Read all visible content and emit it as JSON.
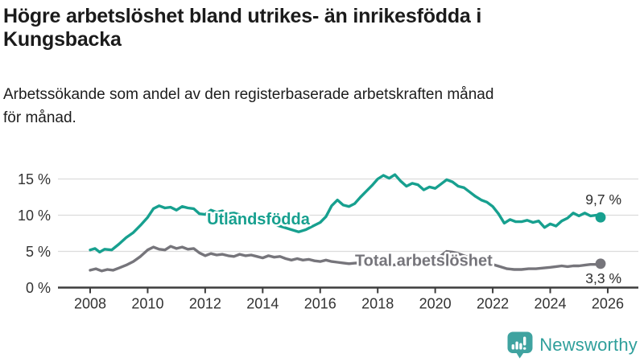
{
  "header": {
    "title": "Högre arbetslöshet bland utrikes- än inrikesfödda i\nKungsbacka",
    "subtitle": "Arbetssökande som andel av den registerbaserade arbetskraften månad\nför månad."
  },
  "chart_data": {
    "type": "line",
    "title": "Högre arbetslöshet bland utrikes- än inrikesfödda i Kungsbacka",
    "subtitle": "Arbetssökande som andel av den registerbaserade arbetskraften månad för månad.",
    "unit": "%",
    "grid": true,
    "legend_position": "inline-labels",
    "x_axis": {
      "ticks": [
        2008,
        2010,
        2012,
        2014,
        2016,
        2018,
        2020,
        2022,
        2024,
        2026
      ],
      "range": [
        2007.5,
        2027.1
      ]
    },
    "y_axis": {
      "tick_values": [
        0,
        5,
        10,
        15
      ],
      "tick_labels": [
        "0 %",
        "5 %",
        "10 %",
        "15 %"
      ],
      "range": [
        0,
        17
      ]
    },
    "series": [
      {
        "name": "Utlandsfödda",
        "color": "#17a08f",
        "end_label": "9,7 %",
        "end_value": 9.7,
        "label_anchor": {
          "x": 2013.85,
          "value": 9.5
        },
        "points": [
          [
            2008.0,
            5.2
          ],
          [
            2008.17,
            5.4
          ],
          [
            2008.33,
            4.9
          ],
          [
            2008.5,
            5.3
          ],
          [
            2008.75,
            5.2
          ],
          [
            2009.0,
            6.0
          ],
          [
            2009.25,
            6.9
          ],
          [
            2009.5,
            7.6
          ],
          [
            2009.75,
            8.6
          ],
          [
            2010.0,
            9.7
          ],
          [
            2010.2,
            10.9
          ],
          [
            2010.4,
            11.3
          ],
          [
            2010.6,
            11.0
          ],
          [
            2010.8,
            11.1
          ],
          [
            2011.0,
            10.7
          ],
          [
            2011.2,
            11.2
          ],
          [
            2011.4,
            11.0
          ],
          [
            2011.6,
            10.9
          ],
          [
            2011.8,
            10.2
          ],
          [
            2012.0,
            10.1
          ],
          [
            2012.2,
            10.7
          ],
          [
            2012.4,
            10.4
          ],
          [
            2012.6,
            10.6
          ],
          [
            2012.8,
            10.2
          ],
          [
            2013.0,
            10.3
          ],
          [
            2013.25,
            10.0
          ],
          [
            2013.5,
            9.8
          ],
          [
            2013.75,
            9.5
          ],
          [
            2014.0,
            9.3
          ],
          [
            2014.25,
            9.0
          ],
          [
            2014.5,
            8.6
          ],
          [
            2014.75,
            8.3
          ],
          [
            2015.0,
            8.0
          ],
          [
            2015.25,
            7.7
          ],
          [
            2015.5,
            8.0
          ],
          [
            2015.75,
            8.5
          ],
          [
            2016.0,
            9.0
          ],
          [
            2016.2,
            9.8
          ],
          [
            2016.4,
            11.3
          ],
          [
            2016.6,
            12.1
          ],
          [
            2016.8,
            11.4
          ],
          [
            2017.0,
            11.2
          ],
          [
            2017.2,
            11.6
          ],
          [
            2017.4,
            12.5
          ],
          [
            2017.6,
            13.3
          ],
          [
            2017.8,
            14.1
          ],
          [
            2018.0,
            15.0
          ],
          [
            2018.2,
            15.5
          ],
          [
            2018.4,
            15.1
          ],
          [
            2018.6,
            15.6
          ],
          [
            2018.8,
            14.7
          ],
          [
            2019.0,
            14.0
          ],
          [
            2019.2,
            14.4
          ],
          [
            2019.4,
            14.2
          ],
          [
            2019.6,
            13.5
          ],
          [
            2019.8,
            13.9
          ],
          [
            2020.0,
            13.7
          ],
          [
            2020.2,
            14.3
          ],
          [
            2020.4,
            14.9
          ],
          [
            2020.6,
            14.6
          ],
          [
            2020.8,
            14.0
          ],
          [
            2021.0,
            13.8
          ],
          [
            2021.2,
            13.2
          ],
          [
            2021.4,
            12.6
          ],
          [
            2021.6,
            12.1
          ],
          [
            2021.8,
            11.8
          ],
          [
            2022.0,
            11.2
          ],
          [
            2022.2,
            10.2
          ],
          [
            2022.4,
            8.9
          ],
          [
            2022.6,
            9.4
          ],
          [
            2022.8,
            9.1
          ],
          [
            2023.0,
            9.1
          ],
          [
            2023.2,
            9.3
          ],
          [
            2023.4,
            9.0
          ],
          [
            2023.6,
            9.2
          ],
          [
            2023.8,
            8.3
          ],
          [
            2024.0,
            8.8
          ],
          [
            2024.2,
            8.5
          ],
          [
            2024.4,
            9.2
          ],
          [
            2024.6,
            9.6
          ],
          [
            2024.8,
            10.3
          ],
          [
            2025.0,
            9.9
          ],
          [
            2025.2,
            10.3
          ],
          [
            2025.4,
            9.9
          ],
          [
            2025.6,
            10.0
          ],
          [
            2025.75,
            9.7
          ]
        ]
      },
      {
        "name": "Total arbetslöshet",
        "color": "#76757b",
        "end_label": "3,3 %",
        "end_value": 3.3,
        "label_anchor": {
          "x": 2019.6,
          "value": 3.8
        },
        "points": [
          [
            2008.0,
            2.4
          ],
          [
            2008.2,
            2.6
          ],
          [
            2008.4,
            2.3
          ],
          [
            2008.6,
            2.5
          ],
          [
            2008.8,
            2.4
          ],
          [
            2009.0,
            2.7
          ],
          [
            2009.25,
            3.1
          ],
          [
            2009.5,
            3.6
          ],
          [
            2009.75,
            4.3
          ],
          [
            2010.0,
            5.2
          ],
          [
            2010.2,
            5.6
          ],
          [
            2010.4,
            5.3
          ],
          [
            2010.6,
            5.2
          ],
          [
            2010.8,
            5.7
          ],
          [
            2011.0,
            5.4
          ],
          [
            2011.2,
            5.6
          ],
          [
            2011.4,
            5.3
          ],
          [
            2011.6,
            5.4
          ],
          [
            2011.8,
            4.8
          ],
          [
            2012.0,
            4.4
          ],
          [
            2012.2,
            4.7
          ],
          [
            2012.4,
            4.5
          ],
          [
            2012.6,
            4.6
          ],
          [
            2012.8,
            4.4
          ],
          [
            2013.0,
            4.3
          ],
          [
            2013.2,
            4.6
          ],
          [
            2013.4,
            4.4
          ],
          [
            2013.6,
            4.5
          ],
          [
            2013.8,
            4.3
          ],
          [
            2014.0,
            4.1
          ],
          [
            2014.2,
            4.4
          ],
          [
            2014.4,
            4.2
          ],
          [
            2014.6,
            4.3
          ],
          [
            2014.8,
            4.0
          ],
          [
            2015.0,
            3.8
          ],
          [
            2015.2,
            4.0
          ],
          [
            2015.4,
            3.8
          ],
          [
            2015.6,
            3.9
          ],
          [
            2015.8,
            3.7
          ],
          [
            2016.0,
            3.6
          ],
          [
            2016.2,
            3.8
          ],
          [
            2016.4,
            3.6
          ],
          [
            2016.6,
            3.5
          ],
          [
            2016.8,
            3.4
          ],
          [
            2017.0,
            3.3
          ],
          [
            2017.25,
            3.4
          ],
          [
            2017.5,
            3.3
          ],
          [
            2017.75,
            3.2
          ],
          [
            2018.0,
            3.1
          ],
          [
            2018.25,
            3.2
          ],
          [
            2018.5,
            3.1
          ],
          [
            2018.75,
            3.2
          ],
          [
            2019.0,
            3.2
          ],
          [
            2019.25,
            3.3
          ],
          [
            2019.5,
            3.3
          ],
          [
            2019.75,
            3.4
          ],
          [
            2020.0,
            3.6
          ],
          [
            2020.2,
            4.4
          ],
          [
            2020.4,
            5.0
          ],
          [
            2020.6,
            4.9
          ],
          [
            2020.8,
            4.7
          ],
          [
            2021.0,
            4.4
          ],
          [
            2021.25,
            4.1
          ],
          [
            2021.5,
            3.8
          ],
          [
            2021.75,
            3.5
          ],
          [
            2022.0,
            3.2
          ],
          [
            2022.25,
            2.9
          ],
          [
            2022.5,
            2.6
          ],
          [
            2022.75,
            2.5
          ],
          [
            2023.0,
            2.5
          ],
          [
            2023.25,
            2.6
          ],
          [
            2023.5,
            2.6
          ],
          [
            2023.75,
            2.7
          ],
          [
            2024.0,
            2.8
          ],
          [
            2024.2,
            2.9
          ],
          [
            2024.4,
            3.0
          ],
          [
            2024.6,
            2.9
          ],
          [
            2024.8,
            3.0
          ],
          [
            2025.0,
            3.0
          ],
          [
            2025.2,
            3.1
          ],
          [
            2025.4,
            3.2
          ],
          [
            2025.6,
            3.2
          ],
          [
            2025.75,
            3.3
          ]
        ]
      }
    ],
    "colors": {
      "grid": "#dcdcdc",
      "axis": "#3d3d3d",
      "tick_text": "#333333",
      "end_label_text": "#2d2d2d"
    }
  },
  "footer": {
    "brand": "Newsworthy",
    "brand_icon": "newsworthy-barchart-bubble-icon",
    "brand_color": "#2f9f9b"
  }
}
